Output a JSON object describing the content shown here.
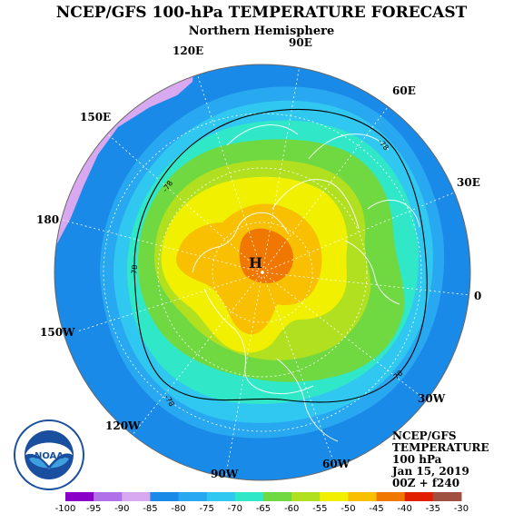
{
  "title": "NCEP/GFS 100-hPa TEMPERATURE FORECAST",
  "subtitle": "Northern Hemisphere",
  "longitude_labels": [
    {
      "text": "90E"
    },
    {
      "text": "60E"
    },
    {
      "text": "30E"
    },
    {
      "text": "0"
    },
    {
      "text": "30W"
    },
    {
      "text": "60W"
    },
    {
      "text": "90W"
    },
    {
      "text": "120W"
    },
    {
      "text": "150W"
    },
    {
      "text": "180"
    },
    {
      "text": "150E"
    },
    {
      "text": "120E"
    }
  ],
  "contour_labels": [
    "-78",
    "-78",
    "-78",
    "-78",
    "-78"
  ],
  "high_marker": "H",
  "info_block": {
    "model": "NCEP/GFS",
    "field": "TEMPERATURE",
    "level": "100 hPa",
    "date": "Jan 15, 2019",
    "run": "00Z + f240"
  },
  "logo": {
    "text": "NOAA",
    "ring_text": "NATIONAL OCEANIC AND ATMOSPHERIC ADMINISTRATION · U.S. DEPARTMENT OF COMMERCE"
  },
  "colorbar": {
    "labels": [
      "-100",
      "-95",
      "-90",
      "-85",
      "-80",
      "-75",
      "-70",
      "-65",
      "-60",
      "-55",
      "-50",
      "-45",
      "-40",
      "-35",
      "-30"
    ],
    "colors": [
      "#8a00c8",
      "#b070e8",
      "#d8a8f0",
      "#1a8ae8",
      "#28a8f0",
      "#30c8f0",
      "#30e8c8",
      "#70d840",
      "#b0e020",
      "#f0f000",
      "#f8c000",
      "#f07800",
      "#e02000",
      "#a05040"
    ]
  },
  "field_colors": {
    "t_-90": "#d8a8f0",
    "t_-85": "#1a8ae8",
    "t_-80": "#28a8f0",
    "t_-75": "#30c8f0",
    "t_-70": "#30e8c8",
    "t_-65": "#70d840",
    "t_-60": "#b0e020",
    "t_-55": "#f0f000",
    "t_-50": "#f8c000",
    "t_-45": "#f07800"
  }
}
